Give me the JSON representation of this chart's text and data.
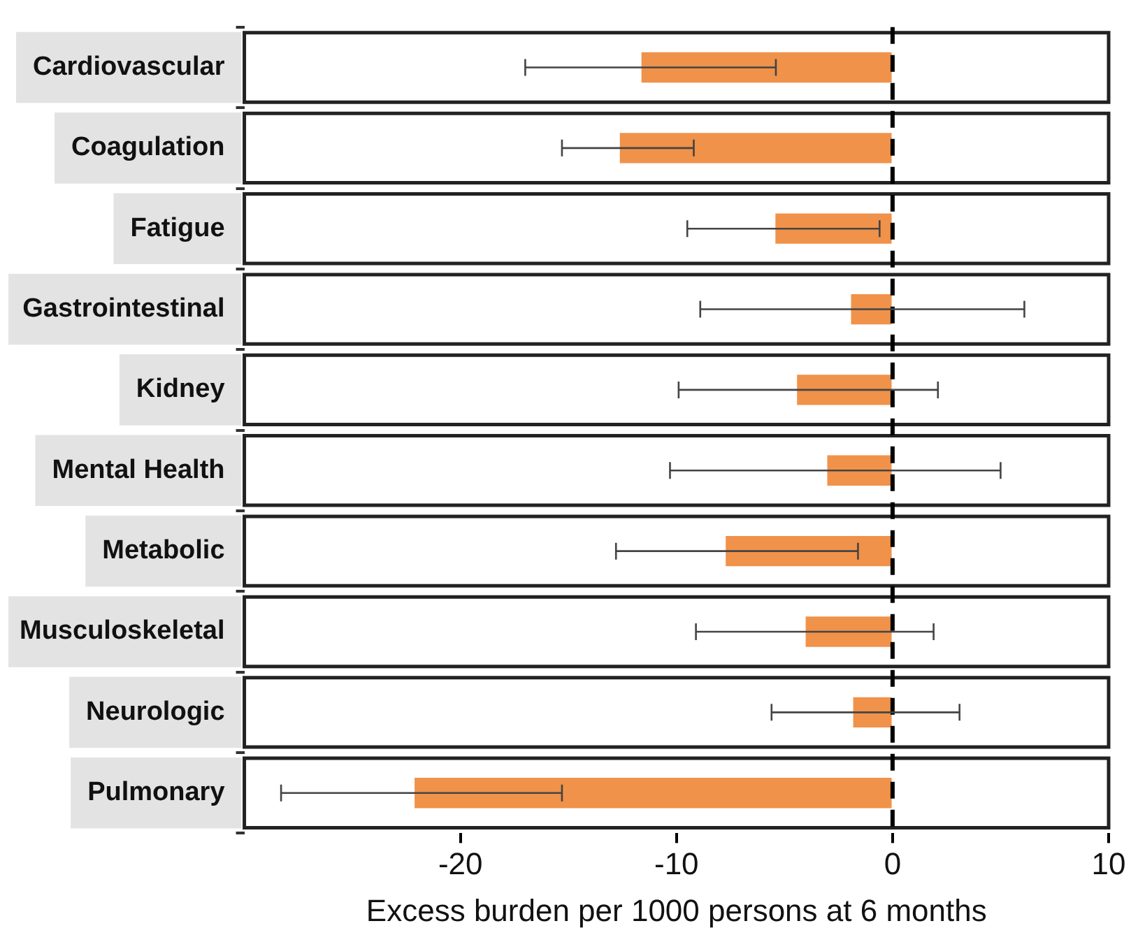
{
  "chart_data": {
    "type": "bar",
    "orientation": "horizontal",
    "xlabel": "Excess burden per 1000 persons at 6 months",
    "categories": [
      "Cardiovascular",
      "Coagulation",
      "Fatigue",
      "Gastrointestinal",
      "Kidney",
      "Mental Health",
      "Metabolic",
      "Musculoskeletal",
      "Neurologic",
      "Pulmonary"
    ],
    "values": [
      -11.6,
      -12.6,
      -5.4,
      -1.9,
      -4.4,
      -3.0,
      -7.7,
      -4.0,
      -1.8,
      -22.1
    ],
    "errors": [
      [
        -17.0,
        -5.4
      ],
      [
        -15.3,
        -9.2
      ],
      [
        -9.5,
        -0.6
      ],
      [
        -8.9,
        6.1
      ],
      [
        -9.9,
        2.1
      ],
      [
        -10.3,
        5.0
      ],
      [
        -12.8,
        -1.6
      ],
      [
        -9.1,
        1.9
      ],
      [
        -5.6,
        3.1
      ],
      [
        -28.3,
        -15.3
      ]
    ],
    "color": "#f0924a",
    "xlim": [
      -30,
      10
    ],
    "xticks": [
      -20,
      -10,
      0,
      10
    ],
    "ref_lines": [
      {
        "axis": "x",
        "value": 0,
        "color": "#000000",
        "line_style": "dashed"
      }
    ],
    "grid": false,
    "legend": false
  }
}
